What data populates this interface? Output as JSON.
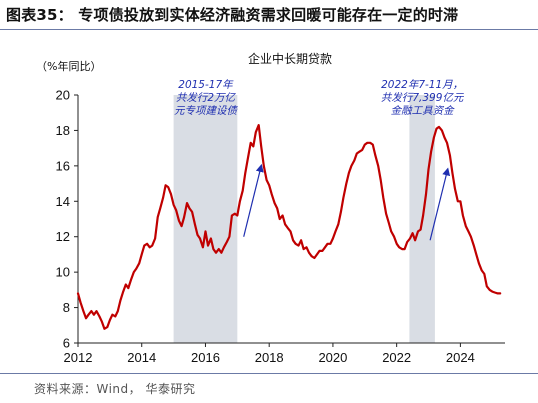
{
  "figure": {
    "title": "图表35：  专项债投放到实体经济融资需求回暖可能存在一定的时滞",
    "source": "资料来源：Wind， 华泰研究"
  },
  "colors": {
    "series": "#c00000",
    "shade": "#d9dde4",
    "annotation": "#1f2fb0",
    "rule": "#6b7aa6"
  },
  "chart_data": {
    "type": "line",
    "title": "企业中长期贷款",
    "unit_label": "（%年同比）",
    "xlim": [
      2012,
      2025.4
    ],
    "ylim": [
      6,
      20
    ],
    "x_ticks": [
      "2012",
      "2014",
      "2016",
      "2018",
      "2020",
      "2022",
      "2024"
    ],
    "y_ticks": [
      "6",
      "8",
      "10",
      "12",
      "14",
      "16",
      "18",
      "20"
    ],
    "grid": false,
    "shaded_periods": [
      {
        "start": 2015.0,
        "end": 2017.0,
        "lines": [
          "2015-17年",
          "共发行2万亿",
          "元专项建设债"
        ]
      },
      {
        "start": 2022.4,
        "end": 2023.2,
        "lines": [
          "2022年7-11月，",
          "共发行7,399亿元",
          "金融工具资金"
        ]
      }
    ],
    "series": [
      {
        "x": [
          2012.0,
          2012.08,
          2012.17,
          2012.25,
          2012.33,
          2012.42,
          2012.5,
          2012.58,
          2012.67,
          2012.75,
          2012.83,
          2012.92,
          2013.0,
          2013.08,
          2013.17,
          2013.25,
          2013.33,
          2013.42,
          2013.5,
          2013.58,
          2013.67,
          2013.75,
          2013.83,
          2013.92,
          2014.0,
          2014.08,
          2014.17,
          2014.25,
          2014.33,
          2014.42,
          2014.5,
          2014.58,
          2014.67,
          2014.75,
          2014.83,
          2014.92,
          2015.0,
          2015.08,
          2015.17,
          2015.25,
          2015.33,
          2015.42,
          2015.5,
          2015.58,
          2015.67,
          2015.75,
          2015.83,
          2015.92,
          2016.0,
          2016.08,
          2016.17,
          2016.25,
          2016.33,
          2016.42,
          2016.5,
          2016.58,
          2016.67,
          2016.75,
          2016.83,
          2016.92,
          2017.0,
          2017.08,
          2017.17,
          2017.25,
          2017.33,
          2017.42,
          2017.5,
          2017.58,
          2017.67,
          2017.75,
          2017.83,
          2017.92,
          2018.0,
          2018.08,
          2018.17,
          2018.25,
          2018.33,
          2018.42,
          2018.5,
          2018.58,
          2018.67,
          2018.75,
          2018.83,
          2018.92,
          2019.0,
          2019.08,
          2019.17,
          2019.25,
          2019.33,
          2019.42,
          2019.5,
          2019.58,
          2019.67,
          2019.75,
          2019.83,
          2019.92,
          2020.0,
          2020.08,
          2020.17,
          2020.25,
          2020.33,
          2020.42,
          2020.5,
          2020.58,
          2020.67,
          2020.75,
          2020.83,
          2020.92,
          2021.0,
          2021.08,
          2021.17,
          2021.25,
          2021.33,
          2021.42,
          2021.5,
          2021.58,
          2021.67,
          2021.75,
          2021.83,
          2021.92,
          2022.0,
          2022.08,
          2022.17,
          2022.25,
          2022.33,
          2022.42,
          2022.5,
          2022.58,
          2022.67,
          2022.75,
          2022.83,
          2022.92,
          2023.0,
          2023.08,
          2023.17,
          2023.25,
          2023.33,
          2023.42,
          2023.5,
          2023.58,
          2023.67,
          2023.75,
          2023.83,
          2023.92,
          2024.0,
          2024.08,
          2024.17,
          2024.25,
          2024.33,
          2024.42,
          2024.5,
          2024.58,
          2024.67,
          2024.75,
          2024.83,
          2024.92,
          2025.0,
          2025.08,
          2025.17,
          2025.25
        ],
        "y": [
          8.8,
          8.3,
          7.8,
          7.4,
          7.6,
          7.8,
          7.6,
          7.8,
          7.5,
          7.2,
          6.8,
          6.9,
          7.3,
          7.6,
          7.5,
          7.8,
          8.4,
          8.9,
          9.3,
          9.1,
          9.6,
          10.0,
          10.2,
          10.5,
          11.0,
          11.5,
          11.6,
          11.4,
          11.5,
          11.9,
          13.1,
          13.6,
          14.2,
          14.9,
          14.8,
          14.4,
          13.8,
          13.5,
          12.9,
          12.6,
          13.1,
          13.9,
          13.6,
          13.4,
          12.7,
          12.1,
          11.9,
          11.4,
          12.3,
          11.5,
          11.9,
          11.3,
          11.1,
          11.3,
          11.1,
          11.4,
          11.7,
          12.0,
          13.2,
          13.3,
          13.2,
          14.0,
          14.6,
          15.6,
          16.4,
          17.3,
          17.1,
          17.9,
          18.3,
          17.1,
          16.0,
          15.2,
          14.9,
          14.4,
          13.9,
          13.6,
          13.0,
          13.2,
          12.7,
          12.5,
          12.3,
          11.8,
          11.6,
          11.5,
          11.8,
          11.3,
          11.4,
          11.1,
          10.9,
          10.8,
          11.0,
          11.2,
          11.2,
          11.4,
          11.6,
          11.6,
          11.9,
          12.3,
          12.7,
          13.4,
          14.2,
          15.0,
          15.6,
          16.0,
          16.3,
          16.7,
          16.8,
          16.9,
          17.2,
          17.3,
          17.3,
          17.2,
          16.6,
          16.0,
          15.2,
          14.2,
          13.3,
          12.8,
          12.3,
          12.0,
          11.6,
          11.4,
          11.3,
          11.3,
          11.7,
          11.9,
          12.2,
          11.8,
          12.3,
          12.4,
          13.2,
          14.4,
          15.8,
          16.8,
          17.6,
          18.1,
          18.2,
          18.0,
          17.6,
          17.3,
          16.6,
          15.6,
          14.7,
          14.0,
          14.0,
          13.2,
          12.6,
          12.3,
          12.0,
          11.5,
          11.0,
          10.5,
          10.1,
          9.9,
          9.2,
          9.0,
          8.9,
          8.85,
          8.8,
          8.8
        ]
      }
    ],
    "arrows": [
      {
        "from": [
          2017.2,
          12.0
        ],
        "to": [
          2017.75,
          16.0
        ]
      },
      {
        "from": [
          2023.05,
          11.8
        ],
        "to": [
          2023.6,
          15.8
        ]
      }
    ]
  }
}
